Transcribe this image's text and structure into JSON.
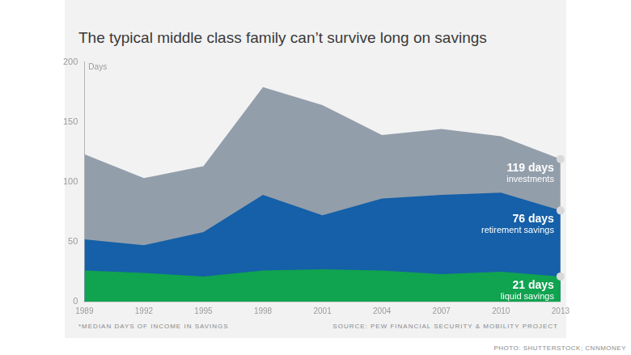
{
  "chart_data": {
    "type": "area",
    "title": "The typical middle class family can’t survive long on savings",
    "y_label": "Days",
    "categories": [
      "1989",
      "1992",
      "1995",
      "1998",
      "2001",
      "2004",
      "2007",
      "2010",
      "2013"
    ],
    "series": [
      {
        "name": "liquid savings",
        "color": "#10a350",
        "values": [
          26,
          24,
          21,
          26,
          27,
          26,
          23,
          25,
          21
        ]
      },
      {
        "name": "retirement savings",
        "color": "#1560a8",
        "values": [
          52,
          47,
          58,
          89,
          72,
          86,
          89,
          91,
          76
        ]
      },
      {
        "name": "investments",
        "color": "#939eab",
        "values": [
          123,
          103,
          113,
          179,
          164,
          139,
          144,
          138,
          119
        ]
      }
    ],
    "annotations": [
      {
        "series": "investments",
        "text": "119 days"
      },
      {
        "series": "retirement savings",
        "text": "76 days"
      },
      {
        "series": "liquid savings",
        "text": "21 days"
      }
    ],
    "ylim": [
      0,
      200
    ],
    "yticks": [
      0,
      50,
      100,
      150,
      200
    ],
    "grid": false,
    "stacked": false,
    "footnote": "*MEDIAN DAYS OF INCOME IN SAVINGS",
    "source": "SOURCE: PEW FINANCIAL SECURITY & MOBILITY PROJECT",
    "credit": "PHOTO: SHUTTERSTOCK; CNNMONEY"
  }
}
